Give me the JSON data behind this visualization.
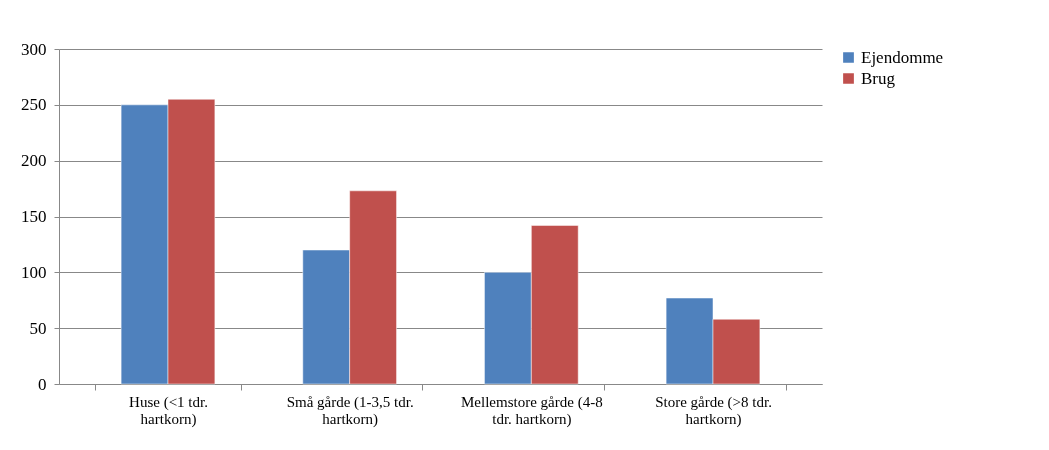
{
  "chart_data": {
    "type": "bar",
    "categories": [
      "Huse (<1 tdr. hartkorn)",
      "Små gårde (1-3,5 tdr. hartkorn)",
      "Mellemstore gårde (4-8 tdr. hartkorn)",
      "Store gårde (>8 tdr. hartkorn)"
    ],
    "series": [
      {
        "name": "Ejendomme",
        "color": "#4f81bd",
        "values": [
          250,
          120,
          100,
          77
        ]
      },
      {
        "name": "Brug",
        "color": "#c0504d",
        "values": [
          255,
          173,
          142,
          58
        ]
      }
    ],
    "ylim": [
      0,
      300
    ],
    "yticks": [
      0,
      50,
      100,
      150,
      200,
      250,
      300
    ],
    "grid": "y",
    "legend": "right"
  }
}
